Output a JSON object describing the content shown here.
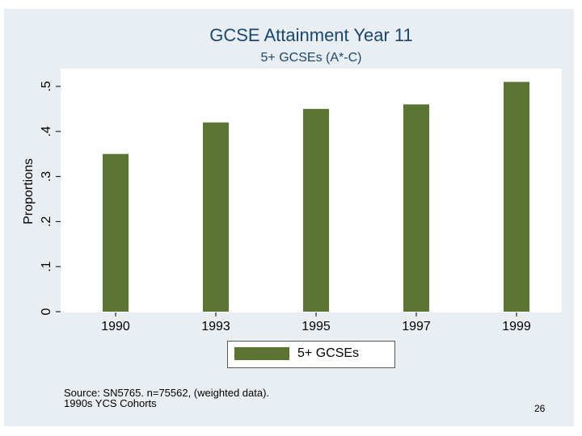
{
  "chart_data": {
    "type": "bar",
    "title": "GCSE Attainment Year 11",
    "subtitle": "5+ GCSEs (A*-C)",
    "ylabel": "Proportions",
    "xlabel": "",
    "categories": [
      "1990",
      "1993",
      "1995",
      "1997",
      "1999"
    ],
    "series": [
      {
        "name": "5+ GCSEs",
        "values": [
          0.35,
          0.42,
          0.45,
          0.46,
          0.51
        ]
      }
    ],
    "ylim": [
      0,
      0.5
    ],
    "yticks": [
      0,
      0.1,
      0.2,
      0.3,
      0.4,
      0.5
    ],
    "ytick_labels": [
      "0",
      ".1",
      ".2",
      ".3",
      ".4",
      ".5"
    ],
    "legend_position": "bottom",
    "grid": false
  },
  "notes": {
    "line1": "Source: SN5765. n=75562, (weighted data).",
    "line2": "1990s YCS Cohorts"
  },
  "page_number": "26",
  "colors": {
    "bar": "#5a7431",
    "title": "#1a476f",
    "background": "#e8eef2"
  }
}
